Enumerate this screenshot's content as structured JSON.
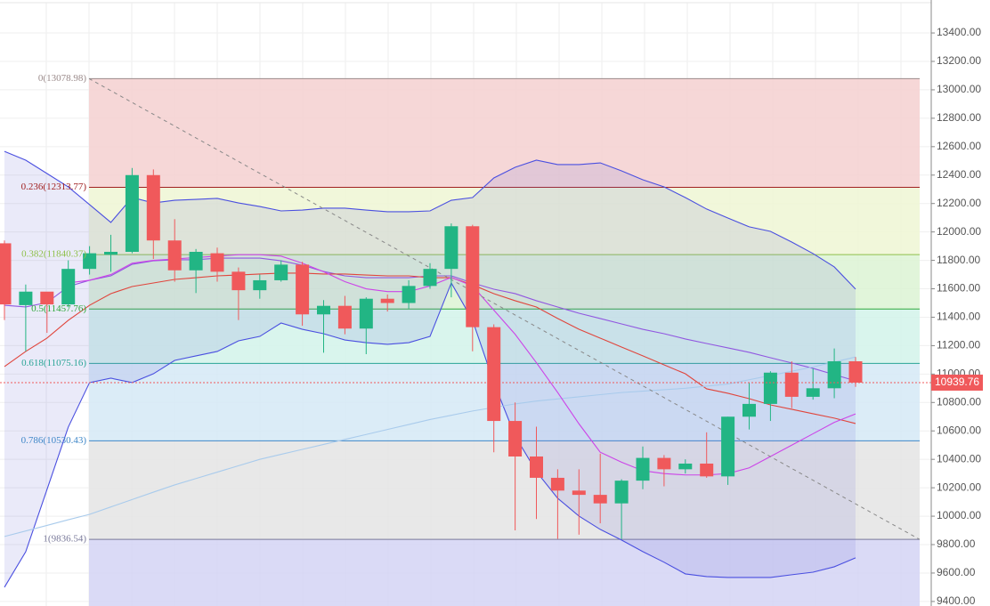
{
  "chart_data": {
    "type": "candlestick",
    "open": [
      11920,
      11485,
      11580,
      11490,
      11740,
      11840,
      11860,
      12400,
      11940,
      11730,
      11850,
      11720,
      11590,
      11660,
      11770,
      11420,
      11480,
      11320,
      11530,
      11500,
      11620,
      11740,
      12040,
      11330,
      10670,
      10420,
      10270,
      10180,
      10150,
      10090,
      10250,
      10410,
      10330,
      10370,
      10280,
      10700,
      10790,
      11010,
      10840,
      10900,
      11090
    ],
    "high": [
      11940,
      11630,
      11560,
      11800,
      11900,
      11980,
      12450,
      12440,
      12090,
      11880,
      11890,
      11750,
      11700,
      11800,
      11790,
      11520,
      11550,
      11540,
      11560,
      11660,
      11780,
      12060,
      12050,
      11350,
      10800,
      10630,
      10330,
      10330,
      10440,
      10260,
      10490,
      10430,
      10400,
      10590,
      10700,
      10940,
      11020,
      11090,
      11040,
      11180,
      11120
    ],
    "low": [
      11380,
      11160,
      11290,
      11470,
      11700,
      11720,
      11850,
      11810,
      11650,
      11570,
      11650,
      11380,
      11530,
      11650,
      11340,
      11150,
      11280,
      11140,
      11440,
      11460,
      11600,
      11540,
      11160,
      10450,
      9900,
      9980,
      9840,
      9870,
      9950,
      9840,
      10190,
      10210,
      10300,
      10270,
      10220,
      10610,
      10670,
      10760,
      10820,
      10830,
      10910
    ],
    "close": [
      11490,
      11580,
      11490,
      11740,
      11850,
      11860,
      12400,
      11940,
      11730,
      11860,
      11720,
      11590,
      11660,
      11770,
      11420,
      11480,
      11320,
      11530,
      11500,
      11620,
      11740,
      12040,
      11330,
      10670,
      10420,
      10270,
      10180,
      10150,
      10090,
      10250,
      10410,
      10330,
      10370,
      10280,
      10700,
      10790,
      11010,
      10840,
      10900,
      11090,
      10939.76
    ],
    "up_color": "#22b584",
    "down_color": "#f0595b",
    "overlays": [
      {
        "color": "#4a4fe0",
        "values": [
          12567,
          12505,
          12411,
          12317,
          12192,
          12067,
          12242,
          12204,
          12223,
          12229,
          12236,
          12204,
          12179,
          12148,
          12154,
          12167,
          12167,
          12154,
          12142,
          12142,
          12148,
          12223,
          12242,
          12380,
          12455,
          12505,
          12474,
          12474,
          12486,
          12430,
          12367,
          12317,
          12242,
          12161,
          12098,
          12036,
          12004,
          11929,
          11848,
          11754,
          11598
        ]
      },
      {
        "color": "#4a4fe0",
        "values": [
          9500,
          9750,
          10188,
          10627,
          10940,
          10971,
          10940,
          11002,
          11096,
          11128,
          11159,
          11234,
          11265,
          11359,
          11315,
          11284,
          11240,
          11221,
          11209,
          11221,
          11265,
          11641,
          11378,
          10940,
          10564,
          10314,
          10126,
          10001,
          9907,
          9832,
          9751,
          9676,
          9594,
          9575,
          9569,
          9569,
          9569,
          9588,
          9606,
          9644,
          9707
        ]
      },
      {
        "color": "#9157e0",
        "values": [
          11484,
          11472,
          11503,
          11616,
          11660,
          11691,
          11772,
          11797,
          11804,
          11804,
          11816,
          11816,
          11816,
          11797,
          11766,
          11722,
          11691,
          11678,
          11678,
          11678,
          11691,
          11691,
          11641,
          11597,
          11566,
          11516,
          11472,
          11428,
          11391,
          11353,
          11315,
          11284,
          11247,
          11215,
          11184,
          11153,
          11115,
          11078,
          11040,
          10996,
          10952
        ]
      },
      {
        "color": "#e0453c",
        "values": [
          11053,
          11159,
          11253,
          11378,
          11484,
          11566,
          11616,
          11641,
          11666,
          11678,
          11691,
          11697,
          11704,
          11710,
          11710,
          11704,
          11704,
          11697,
          11691,
          11691,
          11678,
          11678,
          11628,
          11566,
          11516,
          11472,
          11391,
          11315,
          11253,
          11190,
          11128,
          11065,
          11002,
          10896,
          10865,
          10827,
          10783,
          10752,
          10721,
          10690,
          10652
        ]
      },
      {
        "color": "#a9cbec",
        "values": [
          9857,
          9896,
          9935,
          9975,
          10013,
          10065,
          10117,
          10169,
          10220,
          10265,
          10310,
          10355,
          10400,
          10435,
          10470,
          10505,
          10540,
          10575,
          10610,
          10645,
          10680,
          10710,
          10740,
          10765,
          10790,
          10810,
          10825,
          10840,
          10855,
          10870,
          10880,
          10890,
          10900,
          10915,
          10930,
          10960,
          10990,
          11020,
          11050,
          11085,
          11120
        ]
      },
      {
        "color": "#cc44e8",
        "values": [
          null,
          null,
          null,
          11641,
          11660,
          11700,
          11780,
          11800,
          11810,
          11820,
          11830,
          11840,
          11840,
          11830,
          11780,
          11720,
          11650,
          11600,
          11580,
          11580,
          11620,
          11680,
          11620,
          11450,
          11280,
          11080,
          10870,
          10650,
          10450,
          10380,
          10320,
          10300,
          10290,
          10290,
          10300,
          10340,
          10420,
          10500,
          10580,
          10660,
          10720
        ]
      }
    ],
    "band_fill": "#6f73d6",
    "fib": {
      "levels": [
        {
          "value": 13078.98,
          "label": "0(13078.98)"
        },
        {
          "value": 12313.77,
          "label": "0.236(12313.77)"
        },
        {
          "value": 11840.37,
          "label": "0.382(11840.37)"
        },
        {
          "value": 11457.76,
          "label": "0.5(11457.76)"
        },
        {
          "value": 11075.16,
          "label": "0.618(11075.16)"
        },
        {
          "value": 10530.43,
          "label": "0.786(10530.43)"
        },
        {
          "value": 9836.54,
          "label": "1(9836.54)"
        }
      ],
      "line_colors": [
        "#9a8a8a",
        "#a02020",
        "#8fc04a",
        "#2ea83a",
        "#2aa596",
        "#3f87c8",
        "#7a7a9a"
      ],
      "fills": [
        "#f4d0d0",
        "#eef6d4",
        "#dcf3d4",
        "#d2f3ea",
        "#d5e9f6",
        "#e4e4e4",
        "#d4d4f4"
      ]
    },
    "last_price": 10939.76,
    "ylim": [
      9368,
      13632
    ],
    "yticks": [
      {
        "value": 9400,
        "label": "9400.00"
      },
      {
        "value": 9600,
        "label": "9600.00"
      },
      {
        "value": 9800,
        "label": "9800.00"
      },
      {
        "value": 10000,
        "label": "10000.00"
      },
      {
        "value": 10200,
        "label": "10200.00"
      },
      {
        "value": 10400,
        "label": "10400.00"
      },
      {
        "value": 10600,
        "label": "10600.00"
      },
      {
        "value": 10800,
        "label": "10800.00"
      },
      {
        "value": 11000,
        "label": "11000.00"
      },
      {
        "value": 11200,
        "label": "11200.00"
      },
      {
        "value": 11400,
        "label": "11400.00"
      },
      {
        "value": 11600,
        "label": "11600.00"
      },
      {
        "value": 11800,
        "label": "11800.00"
      },
      {
        "value": 12000,
        "label": "12000.00"
      },
      {
        "value": 12200,
        "label": "12200.00"
      },
      {
        "value": 12400,
        "label": "12400.00"
      },
      {
        "value": 12600,
        "label": "12600.00"
      },
      {
        "value": 12800,
        "label": "12800.00"
      },
      {
        "value": 13000,
        "label": "13000.00"
      },
      {
        "value": 13200,
        "label": "13200.00"
      },
      {
        "value": 13400,
        "label": "13400.00"
      }
    ],
    "grid": true
  }
}
